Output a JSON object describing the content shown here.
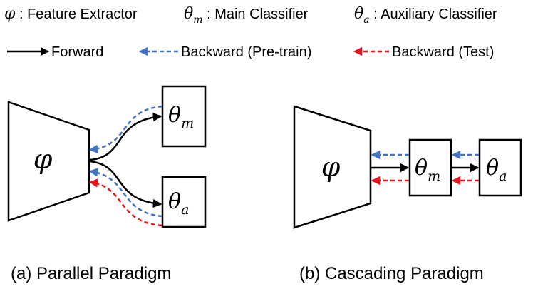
{
  "legend": {
    "defs": [
      {
        "symbol": "φ",
        "sub": "",
        "sep": " : ",
        "text": "Feature Extractor"
      },
      {
        "symbol": "θ",
        "sub": "m",
        "sep": " : ",
        "text": "Main Classifier"
      },
      {
        "symbol": "θ",
        "sub": "a",
        "sep": " : ",
        "text": "Auxiliary Classifier"
      }
    ],
    "arrows": [
      {
        "text": "Forward",
        "style": "solid",
        "color": "#000000"
      },
      {
        "text": "Backward (Pre-train)",
        "style": "dashed",
        "color": "#4472C4"
      },
      {
        "text": "Backward (Test)",
        "style": "dashed",
        "color": "#E8141B"
      }
    ]
  },
  "panels": [
    {
      "caption": "(a) Parallel Paradigm",
      "extractor": {
        "symbol": "φ"
      },
      "main_classifier": {
        "symbol": "θ",
        "sub": "m"
      },
      "aux_classifier": {
        "symbol": "θ",
        "sub": "a"
      }
    },
    {
      "caption": "(b) Cascading Paradigm",
      "extractor": {
        "symbol": "φ"
      },
      "main_classifier": {
        "symbol": "θ",
        "sub": "m"
      },
      "aux_classifier": {
        "symbol": "θ",
        "sub": "a"
      }
    }
  ],
  "colors": {
    "forward": "#000000",
    "pretrain": "#4472C4",
    "test": "#E8141B"
  }
}
